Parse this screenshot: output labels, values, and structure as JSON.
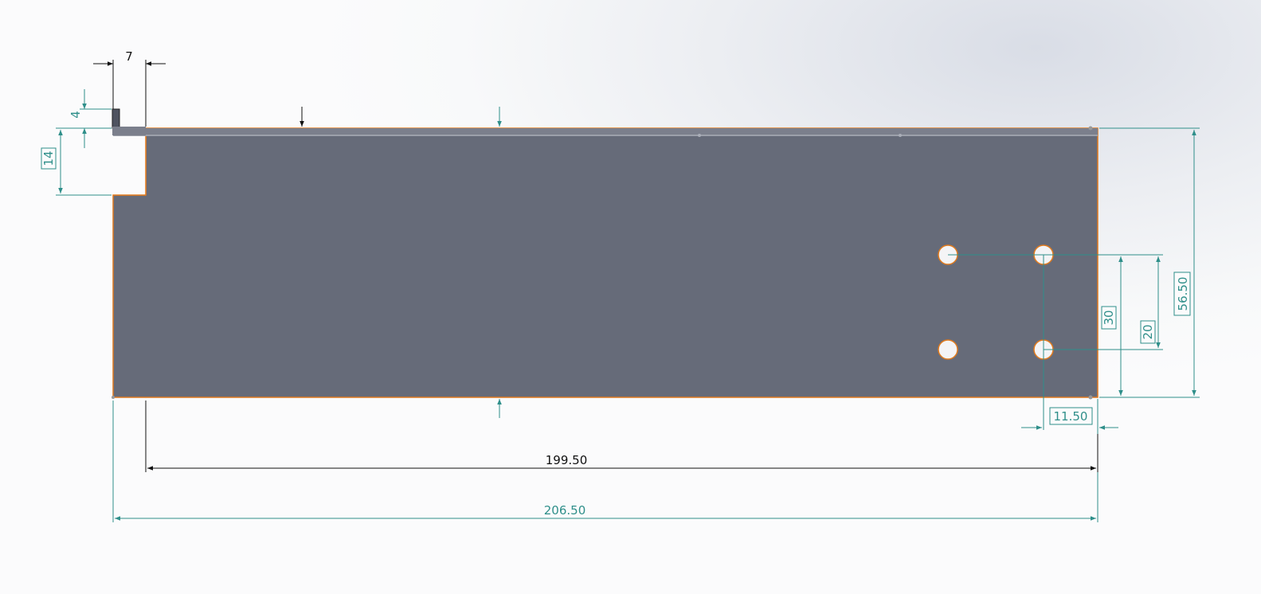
{
  "dimensions": {
    "tab_width": "7",
    "tab_height": "4",
    "notch_depth": "14",
    "overall_height": "56.50",
    "hole_offset_from_bottom": "30",
    "hole_spacing_vertical": "20",
    "hole_offset_from_right": "11.50",
    "inner_length": "199.50",
    "overall_length": "206.50"
  },
  "colors": {
    "part_fill": "#666b79",
    "part_edge": "#e07b1f",
    "dimension_teal": "#2f8f8a",
    "dimension_black": "#111111",
    "hole_fill": "#f4f4f6"
  }
}
